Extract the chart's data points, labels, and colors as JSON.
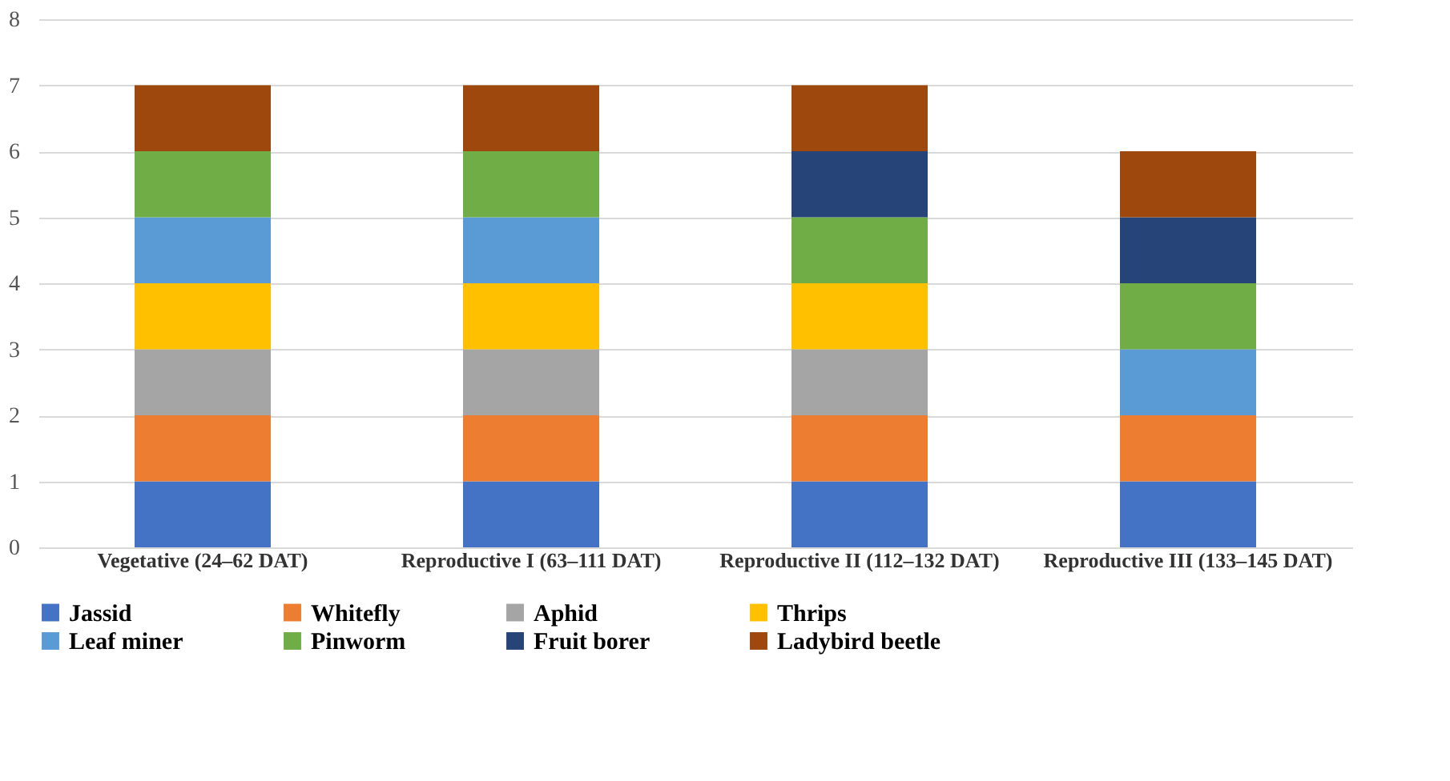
{
  "chart_data": {
    "type": "bar",
    "stacked": true,
    "categories": [
      "Vegetative (24–62 DAT)",
      "Reproductive I (63–111 DAT)",
      "Reproductive II (112–132 DAT)",
      "Reproductive III (133–145 DAT)"
    ],
    "series": [
      {
        "name": "Jassid",
        "color": "#4472c4",
        "values": [
          1,
          1,
          1,
          1
        ]
      },
      {
        "name": "Whitefly",
        "color": "#ed7d31",
        "values": [
          1,
          1,
          1,
          1
        ]
      },
      {
        "name": "Aphid",
        "color": "#a5a5a5",
        "values": [
          1,
          1,
          1,
          null
        ]
      },
      {
        "name": "Thrips",
        "color": "#ffc000",
        "values": [
          1,
          1,
          1,
          null
        ]
      },
      {
        "name": "Leaf miner",
        "color": "#5b9bd5",
        "values": [
          1,
          1,
          null,
          1
        ]
      },
      {
        "name": "Pinworm",
        "color": "#70ad47",
        "values": [
          1,
          1,
          1,
          1
        ]
      },
      {
        "name": "Fruit borer",
        "color": "#264478",
        "values": [
          null,
          null,
          1,
          1
        ]
      },
      {
        "name": "Ladybird beetle",
        "color": "#9e480e",
        "values": [
          1,
          1,
          1,
          1
        ]
      }
    ],
    "ylim": [
      0,
      8
    ],
    "yticks": [
      0,
      1,
      2,
      3,
      4,
      5,
      6,
      7,
      8
    ],
    "grid": "y",
    "legend": "bottom"
  }
}
